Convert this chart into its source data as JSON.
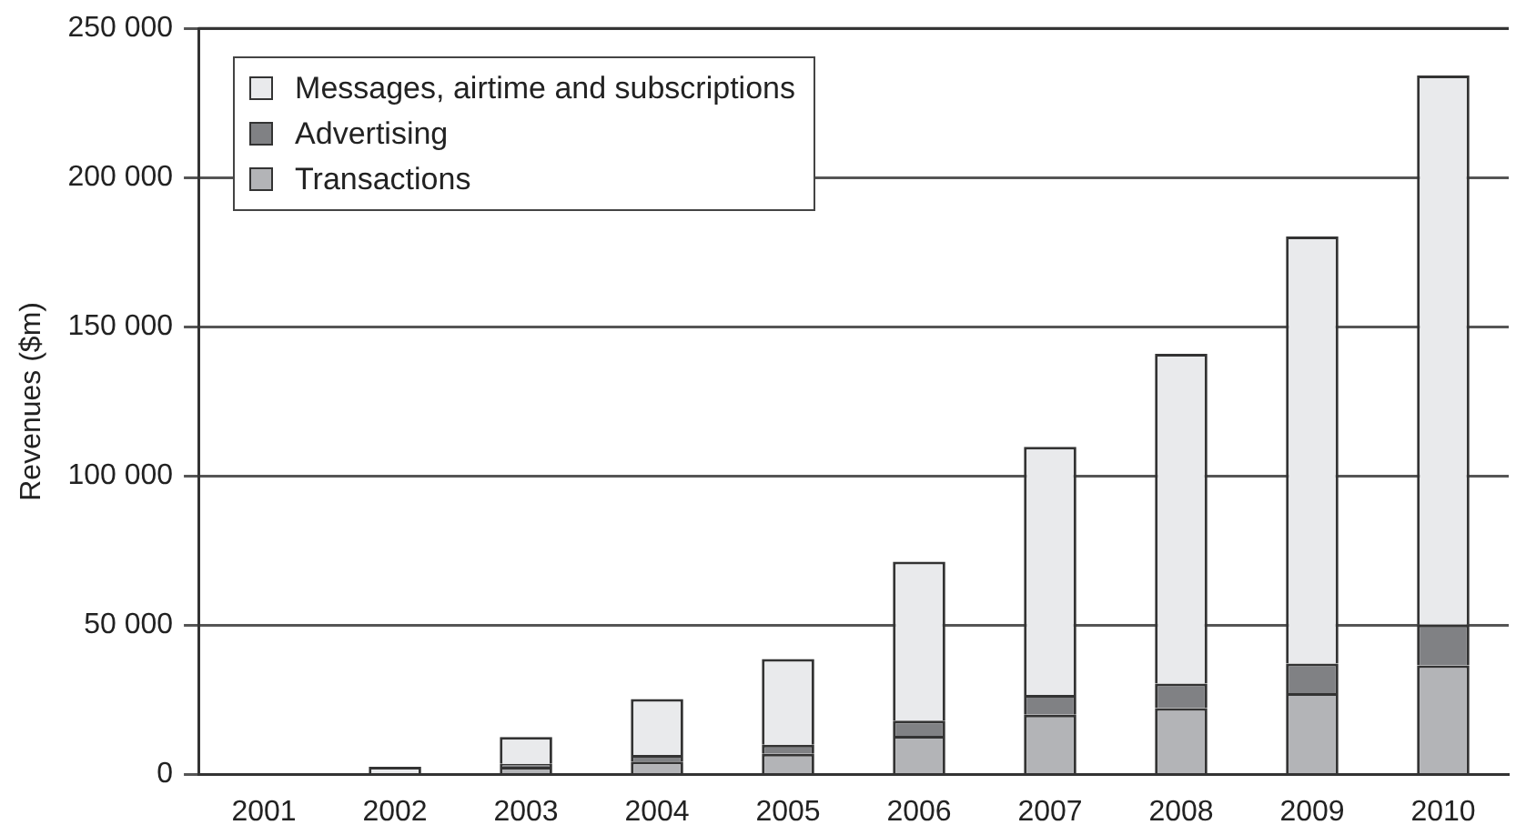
{
  "chart_data": {
    "type": "bar",
    "ylabel": "Revenues ($m)",
    "stacked": true,
    "legend": "top left",
    "grid": "y",
    "categories": [
      "2001",
      "2002",
      "2003",
      "2004",
      "2005",
      "2006",
      "2007",
      "2008",
      "2009",
      "2010"
    ],
    "ylim": [
      0,
      250000
    ],
    "yticks": [
      {
        "value": 0,
        "label": "0"
      },
      {
        "value": 50000,
        "label": "50 000"
      },
      {
        "value": 100000,
        "label": "100 000"
      },
      {
        "value": 150000,
        "label": "150 000"
      },
      {
        "value": 200000,
        "label": "200 000"
      },
      {
        "value": 250000,
        "label": "250 000"
      }
    ],
    "series": [
      {
        "name": "Transactions",
        "color": "#b3b4b7",
        "values": [
          null,
          null,
          2600,
          4400,
          7000,
          13000,
          20100,
          22300,
          27300,
          36600
        ]
      },
      {
        "name": "Advertising",
        "color": "#808184",
        "values": [
          null,
          null,
          1000,
          2200,
          3000,
          5100,
          6600,
          8200,
          9900,
          13600
        ]
      },
      {
        "name": "Messages, airtime and subscriptions",
        "color": "#e9eaec",
        "values": [
          null,
          2600,
          9000,
          18700,
          28700,
          53200,
          83100,
          110500,
          143100,
          184000
        ]
      }
    ]
  }
}
